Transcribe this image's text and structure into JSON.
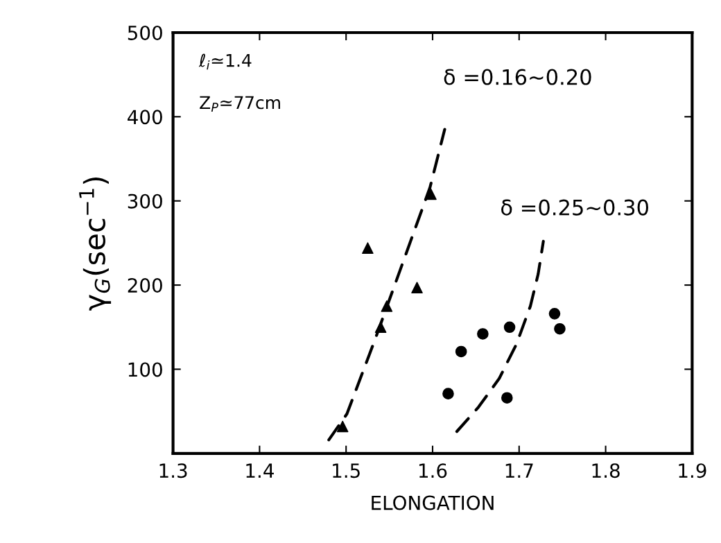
{
  "chart_data": {
    "type": "scatter",
    "xlabel": "ELONGATION",
    "ylabel": "γ$_{G}$(sec$^{−1}$)",
    "xlim": [
      1.3,
      1.9
    ],
    "xticks": [
      1.3,
      1.4,
      1.5,
      1.6,
      1.7,
      1.8,
      1.9
    ],
    "ylim": [
      0,
      500
    ],
    "yticks": [
      100,
      200,
      300,
      400,
      500
    ],
    "grid": false,
    "legend": false,
    "series": [
      {
        "color": "#000000",
        "marker": "triangle",
        "x": [
          1.496,
          1.525,
          1.54,
          1.547,
          1.582,
          1.598
        ],
        "values": [
          32,
          244,
          150,
          175,
          197,
          308
        ]
      },
      {
        "color": "#000000",
        "marker": "circle",
        "x": [
          1.618,
          1.633,
          1.658,
          1.686,
          1.689,
          1.741,
          1.747
        ],
        "values": [
          71,
          121,
          142,
          66,
          150,
          166,
          148
        ]
      },
      {
        "type": "line",
        "color": "#000000",
        "line_style": "dashed",
        "x": [
          1.48,
          1.501,
          1.533,
          1.565,
          1.597,
          1.614
        ],
        "values": [
          16,
          47,
          134,
          225,
          316,
          385
        ]
      },
      {
        "type": "line",
        "color": "#000000",
        "line_style": "dashed",
        "x": [
          1.628,
          1.653,
          1.677,
          1.697,
          1.713,
          1.722,
          1.728
        ],
        "values": [
          26,
          55,
          89,
          130,
          175,
          213,
          252
        ]
      }
    ],
    "annotations": [
      "ℓ$_{i}$≃1.4",
      "Z$_{P}$≃77cm",
      "δ =0.16~0.20",
      "δ =0.25~0.30"
    ]
  }
}
